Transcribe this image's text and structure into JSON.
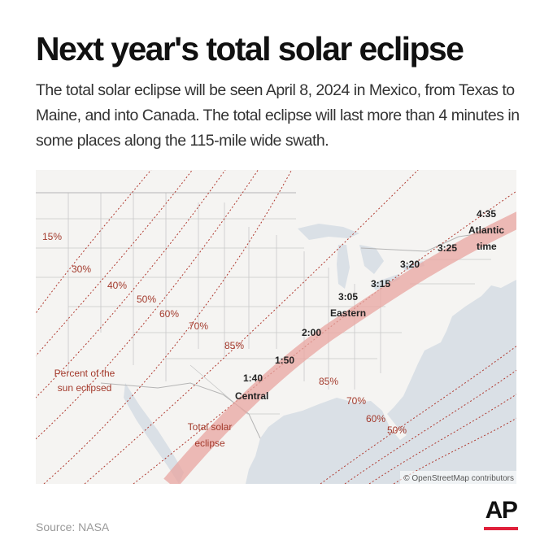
{
  "header": {
    "title": "Next year's total solar eclipse",
    "subtitle": "The total solar eclipse will be seen April 8, 2024 in Mexico, from Texas to Maine, and into Canada. The total eclipse will last more than 4 minutes in some places along the 115-mile wide swath."
  },
  "map": {
    "colors": {
      "water": "#dae0e6",
      "land": "#f5f4f2",
      "border": "#c8c8c8",
      "contour": "#b03a30",
      "path": "#e8a6a0",
      "label_dark": "#222222",
      "label_red": "#a33a2c"
    },
    "percent_labels": [
      "15%",
      "30%",
      "40%",
      "50%",
      "60%",
      "70%",
      "85%",
      "85%",
      "70%",
      "60%",
      "50%"
    ],
    "time_labels": [
      "1:40",
      "1:50",
      "2:00",
      "3:05",
      "3:15",
      "3:20",
      "3:25",
      "4:35"
    ],
    "zone_labels": [
      "Central",
      "Eastern",
      "Atlantic",
      "time"
    ],
    "annotations": {
      "percent_line1": "Percent of the",
      "percent_line2": "sun eclipsed",
      "path_line1": "Total solar",
      "path_line2": "eclipse"
    },
    "attribution": "© OpenStreetMap contributors"
  },
  "footer": {
    "source": "Source: NASA",
    "logo": "AP"
  }
}
